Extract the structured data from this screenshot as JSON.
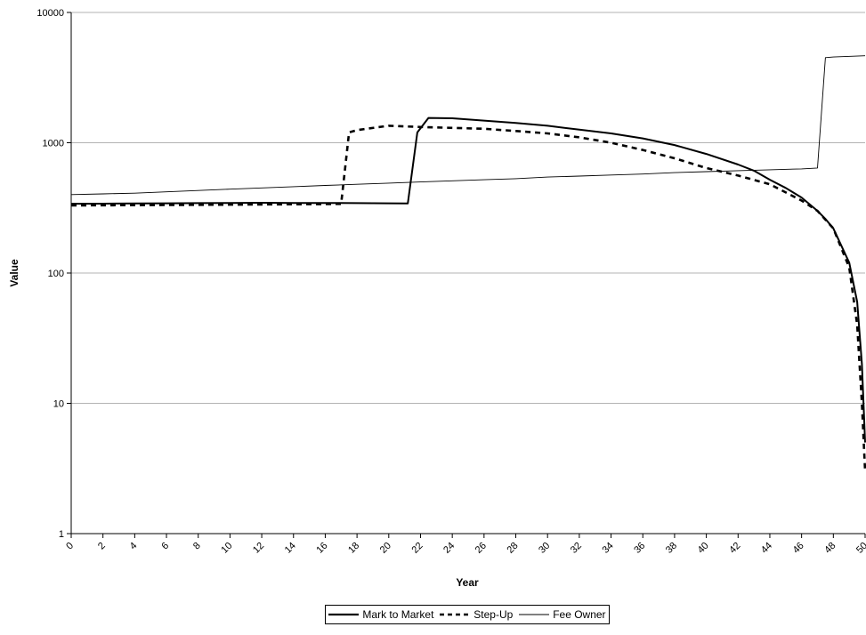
{
  "chart_data": {
    "type": "line",
    "title": "",
    "xlabel": "Year",
    "ylabel": "Value",
    "yscale": "log",
    "ylim": [
      1,
      10000
    ],
    "xlim": [
      0,
      50
    ],
    "y_ticks": [
      "1",
      "10",
      "100",
      "1000",
      "10000"
    ],
    "x_ticks": [
      "0",
      "2",
      "4",
      "6",
      "8",
      "10",
      "12",
      "14",
      "16",
      "18",
      "20",
      "22",
      "24",
      "26",
      "28",
      "30",
      "32",
      "34",
      "36",
      "38",
      "40",
      "42",
      "44",
      "46",
      "48",
      "50"
    ],
    "grid": {
      "horizontal": true,
      "vertical": false
    },
    "legend_position": "bottom",
    "series": [
      {
        "name": "Mark to Market",
        "style": "solid-thick",
        "color": "#000000",
        "x": [
          0,
          2,
          4,
          6,
          8,
          10,
          12,
          14,
          16,
          18,
          20,
          21.2,
          21.8,
          22.5,
          24,
          26,
          28,
          30,
          32,
          34,
          36,
          38,
          40,
          42,
          43,
          44,
          45,
          46,
          47,
          47.5,
          48,
          49,
          49.5,
          49.8,
          50
        ],
        "y": [
          340,
          341,
          342,
          343,
          344,
          345,
          346,
          345,
          345,
          344,
          343,
          342,
          1200,
          1550,
          1540,
          1480,
          1420,
          1350,
          1260,
          1180,
          1080,
          960,
          820,
          680,
          610,
          520,
          450,
          380,
          300,
          260,
          220,
          120,
          60,
          20,
          5
        ]
      },
      {
        "name": "Step-Up",
        "style": "dashed-thick",
        "color": "#000000",
        "x": [
          0,
          2,
          4,
          6,
          8,
          10,
          12,
          14,
          16,
          17,
          17.5,
          18,
          20,
          22,
          24,
          26,
          28,
          30,
          32,
          34,
          36,
          38,
          40,
          42,
          44,
          46,
          47,
          48,
          49,
          49.5,
          49.8,
          50
        ],
        "y": [
          330,
          331,
          332,
          333,
          334,
          335,
          336,
          337,
          338,
          339,
          1200,
          1250,
          1350,
          1320,
          1300,
          1280,
          1230,
          1180,
          1100,
          1000,
          880,
          760,
          640,
          560,
          480,
          360,
          300,
          220,
          110,
          40,
          10,
          3
        ]
      },
      {
        "name": "Fee Owner",
        "style": "solid-thin",
        "color": "#000000",
        "x": [
          0,
          2,
          4,
          6,
          8,
          10,
          12,
          14,
          16,
          18,
          20,
          22,
          24,
          26,
          28,
          30,
          32,
          34,
          36,
          38,
          40,
          42,
          44,
          46,
          47,
          47.5,
          48,
          50
        ],
        "y": [
          400,
          405,
          410,
          420,
          430,
          440,
          450,
          460,
          470,
          480,
          490,
          500,
          510,
          520,
          530,
          545,
          555,
          565,
          575,
          590,
          600,
          610,
          620,
          630,
          640,
          4500,
          4550,
          4650
        ]
      }
    ]
  }
}
